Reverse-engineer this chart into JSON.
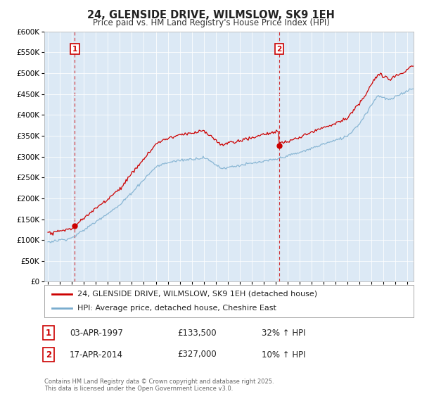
{
  "title": "24, GLENSIDE DRIVE, WILMSLOW, SK9 1EH",
  "subtitle": "Price paid vs. HM Land Registry's House Price Index (HPI)",
  "legend_line1": "24, GLENSIDE DRIVE, WILMSLOW, SK9 1EH (detached house)",
  "legend_line2": "HPI: Average price, detached house, Cheshire East",
  "sale1_date": "03-APR-1997",
  "sale1_price": "£133,500",
  "sale1_hpi": "32% ↑ HPI",
  "sale1_year": 1997.25,
  "sale1_value": 133500,
  "sale2_date": "17-APR-2014",
  "sale2_price": "£327,000",
  "sale2_hpi": "10% ↑ HPI",
  "sale2_year": 2014.29,
  "sale2_value": 327000,
  "footer": "Contains HM Land Registry data © Crown copyright and database right 2025.\nThis data is licensed under the Open Government Licence v3.0.",
  "line_color_red": "#cc0000",
  "line_color_blue": "#7aadce",
  "vline_color": "#cc0000",
  "chart_bg": "#dce9f5",
  "background_color": "#ffffff",
  "ylim": [
    0,
    600000
  ],
  "xlim_start": 1994.7,
  "xlim_end": 2025.5
}
